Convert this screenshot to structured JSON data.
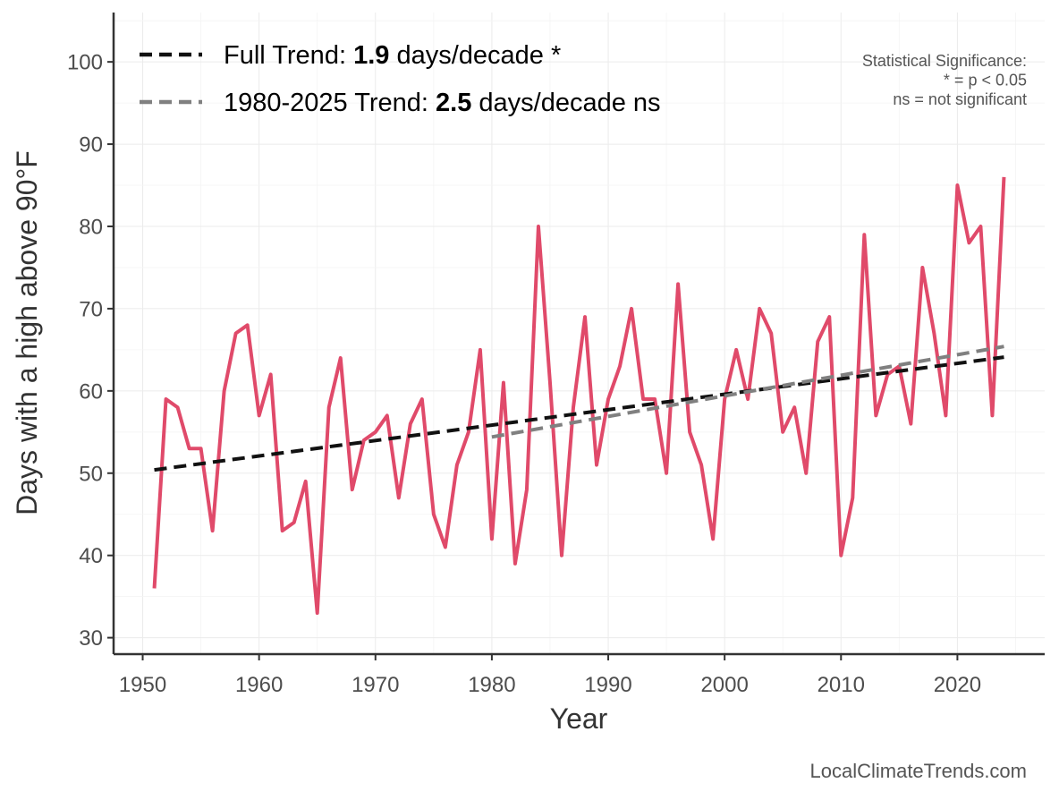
{
  "chart_data": {
    "type": "line",
    "xlabel": "Year",
    "ylabel": "Days with a high above 90°F",
    "xlim": [
      1947.5,
      2027.5
    ],
    "ylim": [
      28,
      106
    ],
    "x_ticks": [
      1950,
      1960,
      1970,
      1980,
      1990,
      2000,
      2010,
      2020
    ],
    "y_ticks": [
      30,
      40,
      50,
      60,
      70,
      80,
      90,
      100
    ],
    "grid": true,
    "legend_position": "top-left",
    "series": [
      {
        "kind": "observed",
        "color": "#e04a6a",
        "x": [
          1951,
          1952,
          1953,
          1954,
          1955,
          1956,
          1957,
          1958,
          1959,
          1960,
          1961,
          1962,
          1963,
          1964,
          1965,
          1966,
          1967,
          1968,
          1969,
          1970,
          1971,
          1972,
          1973,
          1974,
          1975,
          1976,
          1977,
          1978,
          1979,
          1980,
          1981,
          1982,
          1983,
          1984,
          1985,
          1986,
          1987,
          1988,
          1989,
          1990,
          1991,
          1992,
          1993,
          1994,
          1995,
          1996,
          1997,
          1998,
          1999,
          2000,
          2001,
          2002,
          2003,
          2004,
          2005,
          2006,
          2007,
          2008,
          2009,
          2010,
          2011,
          2012,
          2013,
          2014,
          2015,
          2016,
          2017,
          2018,
          2019,
          2020,
          2021,
          2022,
          2023,
          2024
        ],
        "y": [
          36,
          59,
          58,
          53,
          53,
          43,
          60,
          67,
          68,
          57,
          62,
          43,
          44,
          49,
          33,
          58,
          64,
          48,
          54,
          55,
          57,
          47,
          56,
          59,
          45,
          41,
          51,
          55,
          65,
          42,
          61,
          39,
          48,
          80,
          61,
          40,
          58,
          69,
          51,
          59,
          63,
          70,
          59,
          59,
          50,
          73,
          55,
          51,
          42,
          59,
          65,
          59,
          70,
          67,
          55,
          58,
          50,
          66,
          69,
          40,
          47,
          79,
          57,
          62,
          63,
          56,
          75,
          67,
          57,
          85,
          78,
          80,
          57,
          86
        ]
      },
      {
        "name": "Full Trend",
        "kind": "trend",
        "color": "#111111",
        "x": [
          1951,
          2024
        ],
        "y": [
          50.4,
          64.1
        ]
      },
      {
        "name": "1980-2025 Trend",
        "kind": "trend",
        "color": "#808080",
        "x": [
          1980,
          2024
        ],
        "y": [
          54.4,
          65.4
        ]
      }
    ],
    "legend": [
      {
        "prefix": "Full Trend: ",
        "value": "1.9",
        "suffix": " days/decade *",
        "color": "#111111"
      },
      {
        "prefix": "1980-2025 Trend: ",
        "value": "2.5",
        "suffix": " days/decade ns",
        "color": "#808080"
      }
    ],
    "annotation": {
      "lines": [
        "Statistical Significance:",
        "* = p < 0.05",
        "ns = not significant"
      ]
    },
    "caption": "LocalClimateTrends.com"
  }
}
